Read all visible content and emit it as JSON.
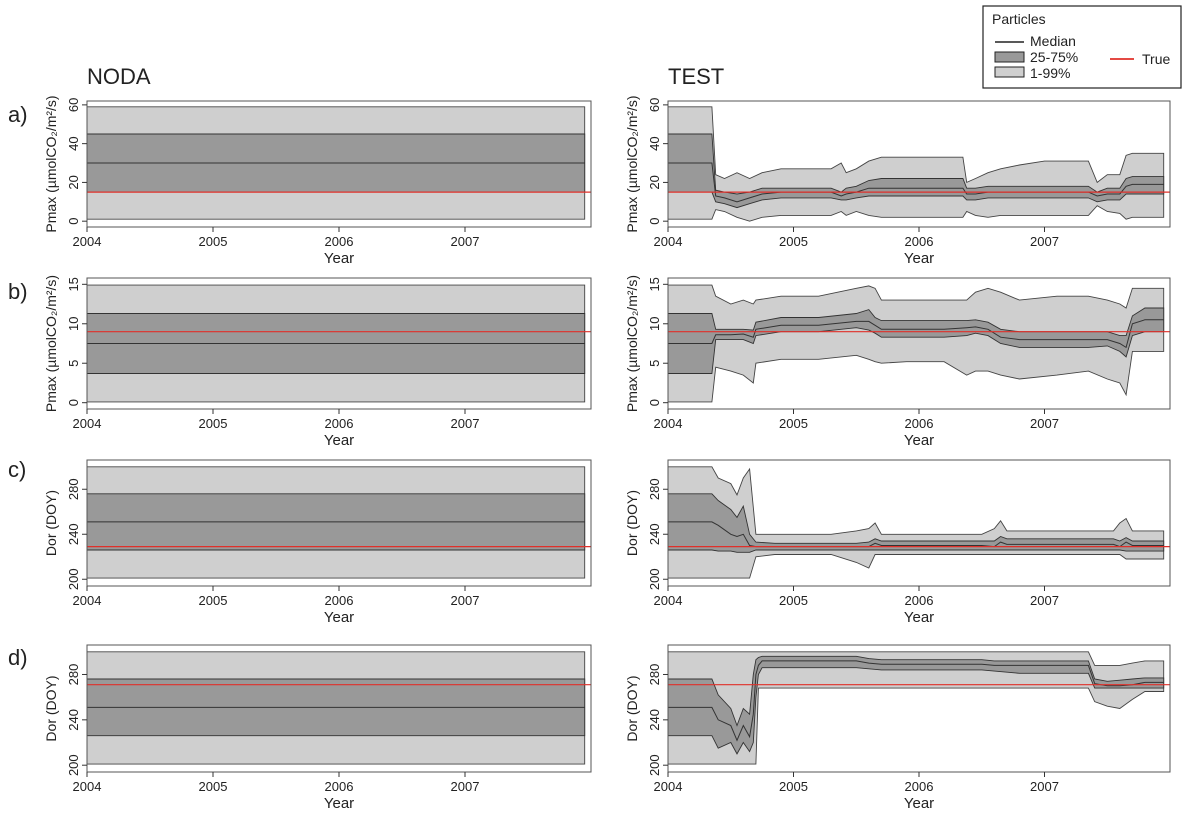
{
  "figure": {
    "column_titles": [
      "NODA",
      "TEST"
    ],
    "panel_letters": [
      "a)",
      "b)",
      "c)",
      "d)"
    ],
    "legend": {
      "title": "Particles",
      "median_label": "Median",
      "iqr_label": "25-75%",
      "range_label": "1-99%",
      "true_label": "True"
    },
    "colors": {
      "outer_band": "#cfcfcf",
      "inner_band": "#999999",
      "median": "#333333",
      "true": "#e0302a"
    }
  },
  "chart_data": [
    {
      "type": "area",
      "panel": "a)",
      "column": "NODA",
      "xlabel": "Year",
      "ylabel": "Pmax (µmolCO₂/m²/s)",
      "xlim": [
        2004.0,
        2008.0
      ],
      "ylim": [
        -3,
        62
      ],
      "xticks": [
        2004,
        2005,
        2006,
        2007
      ],
      "yticks": [
        0,
        20,
        40,
        60
      ],
      "x": [
        2004.0,
        2007.95
      ],
      "p01": [
        1,
        1
      ],
      "p25": [
        15,
        15
      ],
      "median": [
        30,
        30
      ],
      "p75": [
        45,
        45
      ],
      "p99": [
        59,
        59
      ],
      "true_value": 15
    },
    {
      "type": "area",
      "panel": "a)",
      "column": "TEST",
      "xlabel": "Year",
      "ylabel": "Pmax (µmolCO₂/m²/s)",
      "xlim": [
        2004.0,
        2008.0
      ],
      "ylim": [
        -3,
        62
      ],
      "xticks": [
        2004,
        2005,
        2006,
        2007
      ],
      "yticks": [
        0,
        20,
        40,
        60
      ],
      "x": [
        2004.0,
        2004.35,
        2004.38,
        2004.45,
        2004.55,
        2004.65,
        2004.75,
        2004.9,
        2005.1,
        2005.3,
        2005.38,
        2005.42,
        2005.5,
        2005.6,
        2005.7,
        2005.9,
        2006.1,
        2006.35,
        2006.38,
        2006.45,
        2006.55,
        2006.65,
        2006.8,
        2007.0,
        2007.2,
        2007.35,
        2007.42,
        2007.5,
        2007.6,
        2007.65,
        2007.7,
        2007.8,
        2007.95
      ],
      "p01": [
        1,
        1,
        6,
        5,
        2,
        0,
        2,
        3,
        3,
        3,
        5,
        3,
        5,
        3,
        2,
        2,
        2,
        2,
        5,
        3,
        2,
        3,
        3,
        3,
        3,
        3,
        8,
        5,
        4,
        1,
        2,
        2,
        2
      ],
      "p25": [
        15,
        15,
        10,
        9,
        7,
        9,
        11,
        12,
        12,
        12,
        11,
        11,
        12,
        13,
        13,
        13,
        13,
        13,
        11,
        11,
        12,
        12,
        12,
        12,
        12,
        12,
        10,
        11,
        11,
        14,
        14,
        14,
        14
      ],
      "median": [
        30,
        30,
        13,
        12,
        10,
        12,
        14,
        15,
        15,
        15,
        13,
        14,
        15,
        17,
        17,
        17,
        17,
        17,
        14,
        14,
        15,
        15,
        15,
        15,
        15,
        15,
        13,
        14,
        14,
        18,
        19,
        19,
        19
      ],
      "p75": [
        45,
        45,
        16,
        15,
        14,
        15,
        17,
        17,
        17,
        17,
        15,
        17,
        18,
        21,
        22,
        22,
        22,
        22,
        17,
        17,
        18,
        18,
        18,
        18,
        18,
        18,
        15,
        17,
        17,
        22,
        23,
        23,
        23
      ],
      "p99": [
        59,
        59,
        24,
        22,
        25,
        22,
        25,
        27,
        27,
        27,
        30,
        25,
        27,
        31,
        33,
        33,
        33,
        33,
        20,
        22,
        25,
        27,
        29,
        31,
        31,
        31,
        20,
        24,
        24,
        34,
        35,
        35,
        35
      ],
      "true_value": 15
    },
    {
      "type": "area",
      "panel": "b)",
      "column": "NODA",
      "xlabel": "Year",
      "ylabel": "Pmax (µmolCO₂/m²/s)",
      "xlim": [
        2004.0,
        2008.0
      ],
      "ylim": [
        -0.8,
        15.8
      ],
      "xticks": [
        2004,
        2005,
        2006,
        2007
      ],
      "yticks": [
        0,
        5,
        10,
        15
      ],
      "x": [
        2004.0,
        2007.95
      ],
      "p01": [
        0.1,
        0.1
      ],
      "p25": [
        3.7,
        3.7
      ],
      "median": [
        7.5,
        7.5
      ],
      "p75": [
        11.3,
        11.3
      ],
      "p99": [
        14.9,
        14.9
      ],
      "true_value": 9
    },
    {
      "type": "area",
      "panel": "b)",
      "column": "TEST",
      "xlabel": "Year",
      "ylabel": "Pmax (µmolCO₂/m²/s)",
      "xlim": [
        2004.0,
        2008.0
      ],
      "ylim": [
        -0.8,
        15.8
      ],
      "xticks": [
        2004,
        2005,
        2006,
        2007
      ],
      "yticks": [
        0,
        5,
        10,
        15
      ],
      "x": [
        2004.0,
        2004.35,
        2004.38,
        2004.5,
        2004.6,
        2004.68,
        2004.7,
        2004.9,
        2005.2,
        2005.5,
        2005.6,
        2005.65,
        2005.7,
        2005.9,
        2006.2,
        2006.38,
        2006.45,
        2006.55,
        2006.65,
        2006.8,
        2007.1,
        2007.35,
        2007.5,
        2007.6,
        2007.65,
        2007.7,
        2007.8,
        2007.95
      ],
      "p01": [
        0.1,
        0.1,
        4.5,
        4,
        3.5,
        2.5,
        5,
        5.5,
        5.5,
        6,
        5.5,
        5.2,
        5,
        5.2,
        5.2,
        3.5,
        4,
        4,
        3.5,
        3,
        3.5,
        4,
        3,
        2.5,
        1,
        6.5,
        6.5,
        6.5
      ],
      "p25": [
        3.7,
        3.7,
        8,
        8,
        8,
        7.5,
        8.5,
        9,
        9,
        9.5,
        9.2,
        8.8,
        8.3,
        8.3,
        8.3,
        8.5,
        8.8,
        8.5,
        7.5,
        7,
        7,
        7,
        7.2,
        6.5,
        5.8,
        8.5,
        9,
        9
      ],
      "median": [
        7.5,
        7.5,
        8.6,
        8.6,
        8.7,
        8.3,
        9.3,
        9.8,
        9.8,
        10.3,
        10.3,
        9.8,
        9.3,
        9.3,
        9.3,
        9.5,
        9.6,
        9.3,
        8.3,
        8,
        8,
        8,
        8,
        7.5,
        7,
        10,
        10.5,
        10.5
      ],
      "p75": [
        11.3,
        11.3,
        9.3,
        9.3,
        9.3,
        9.2,
        10.2,
        10.8,
        10.8,
        11.3,
        11.8,
        10.8,
        10.4,
        10.4,
        10.4,
        10.4,
        10.5,
        10.2,
        9.3,
        9,
        9,
        9,
        9,
        8.5,
        8.5,
        11,
        12,
        12
      ],
      "p99": [
        14.9,
        14.9,
        13.5,
        12.5,
        13,
        12.5,
        13,
        13.5,
        13.5,
        14.5,
        14.8,
        14.5,
        13,
        13,
        13,
        13,
        14,
        14.5,
        14,
        13,
        13.5,
        13.5,
        13,
        12.5,
        12,
        14.5,
        14.5,
        14.5
      ],
      "true_value": 9
    },
    {
      "type": "area",
      "panel": "c)",
      "column": "NODA",
      "xlabel": "Year",
      "ylabel": "Dor (DOY)",
      "xlim": [
        2004.0,
        2008.0
      ],
      "ylim": [
        194,
        306
      ],
      "xticks": [
        2004,
        2005,
        2006,
        2007
      ],
      "yticks": [
        200,
        240,
        280
      ],
      "x": [
        2004.0,
        2007.95
      ],
      "p01": [
        201,
        201
      ],
      "p25": [
        226,
        226
      ],
      "median": [
        251,
        251
      ],
      "p75": [
        276,
        276
      ],
      "p99": [
        300,
        300
      ],
      "true_value": 229
    },
    {
      "type": "area",
      "panel": "c)",
      "column": "TEST",
      "xlabel": "Year",
      "ylabel": "Dor (DOY)",
      "xlim": [
        2004.0,
        2008.0
      ],
      "ylim": [
        194,
        306
      ],
      "xticks": [
        2004,
        2005,
        2006,
        2007
      ],
      "yticks": [
        200,
        240,
        280
      ],
      "x": [
        2004.0,
        2004.35,
        2004.4,
        2004.5,
        2004.55,
        2004.6,
        2004.65,
        2004.7,
        2004.85,
        2005.0,
        2005.3,
        2005.5,
        2005.6,
        2005.65,
        2005.7,
        2006.0,
        2006.3,
        2006.5,
        2006.6,
        2006.65,
        2006.7,
        2007.0,
        2007.3,
        2007.55,
        2007.6,
        2007.65,
        2007.7,
        2007.95
      ],
      "p01": [
        201,
        201,
        201,
        201,
        201,
        201,
        201,
        220,
        222,
        222,
        222,
        215,
        210,
        222,
        222,
        222,
        222,
        222,
        222,
        222,
        222,
        222,
        222,
        222,
        222,
        218,
        218,
        218
      ],
      "p25": [
        226,
        226,
        225,
        225,
        224,
        224,
        224,
        226,
        226,
        226,
        226,
        226,
        226,
        226,
        226,
        226,
        226,
        226,
        226,
        226,
        226,
        226,
        226,
        226,
        226,
        225,
        225,
        225
      ],
      "median": [
        251,
        251,
        248,
        240,
        238,
        240,
        230,
        229,
        229,
        229,
        229,
        229,
        229,
        232,
        230,
        230,
        230,
        230,
        229,
        233,
        231,
        231,
        231,
        231,
        229,
        233,
        230,
        230
      ],
      "p75": [
        276,
        276,
        270,
        262,
        255,
        265,
        240,
        233,
        232,
        232,
        232,
        232,
        233,
        236,
        234,
        234,
        234,
        234,
        234,
        238,
        236,
        236,
        236,
        236,
        234,
        237,
        234,
        234
      ],
      "p99": [
        300,
        300,
        290,
        285,
        275,
        290,
        298,
        240,
        240,
        240,
        240,
        243,
        245,
        250,
        240,
        240,
        240,
        240,
        245,
        252,
        243,
        243,
        243,
        243,
        250,
        254,
        243,
        243
      ],
      "true_value": 229
    },
    {
      "type": "area",
      "panel": "d)",
      "column": "NODA",
      "xlabel": "Year",
      "ylabel": "Dor (DOY)",
      "xlim": [
        2004.0,
        2008.0
      ],
      "ylim": [
        194,
        306
      ],
      "xticks": [
        2004,
        2005,
        2006,
        2007
      ],
      "yticks": [
        200,
        240,
        280
      ],
      "x": [
        2004.0,
        2007.95
      ],
      "p01": [
        201,
        201
      ],
      "p25": [
        226,
        226
      ],
      "median": [
        251,
        251
      ],
      "p75": [
        276,
        276
      ],
      "p99": [
        300,
        300
      ],
      "true_value": 271
    },
    {
      "type": "area",
      "panel": "d)",
      "column": "TEST",
      "xlabel": "Year",
      "ylabel": "Dor (DOY)",
      "xlim": [
        2004.0,
        2008.0
      ],
      "ylim": [
        194,
        306
      ],
      "xticks": [
        2004,
        2005,
        2006,
        2007
      ],
      "yticks": [
        200,
        240,
        280
      ],
      "x": [
        2004.0,
        2004.35,
        2004.4,
        2004.5,
        2004.55,
        2004.6,
        2004.65,
        2004.68,
        2004.7,
        2004.72,
        2004.75,
        2005.0,
        2005.3,
        2005.5,
        2005.6,
        2005.7,
        2006.0,
        2006.3,
        2006.5,
        2006.6,
        2006.8,
        2007.0,
        2007.35,
        2007.4,
        2007.5,
        2007.6,
        2007.7,
        2007.8,
        2007.95
      ],
      "p01": [
        201,
        201,
        201,
        201,
        201,
        201,
        201,
        201,
        201,
        268,
        268,
        268,
        268,
        268,
        268,
        268,
        268,
        268,
        268,
        268,
        268,
        268,
        268,
        256,
        252,
        250,
        258,
        265,
        265
      ],
      "p25": [
        226,
        226,
        215,
        220,
        210,
        220,
        212,
        220,
        260,
        280,
        286,
        286,
        286,
        286,
        285,
        284,
        284,
        284,
        284,
        283,
        281,
        281,
        281,
        268,
        268,
        268,
        268,
        268,
        268
      ],
      "median": [
        251,
        251,
        240,
        235,
        222,
        235,
        225,
        245,
        280,
        288,
        292,
        292,
        292,
        292,
        290,
        289,
        289,
        289,
        289,
        288,
        288,
        288,
        288,
        272,
        270,
        270,
        271,
        273,
        273
      ],
      "p75": [
        276,
        276,
        262,
        250,
        235,
        250,
        245,
        280,
        293,
        295,
        296,
        296,
        296,
        296,
        294,
        293,
        293,
        293,
        293,
        292,
        292,
        292,
        292,
        276,
        274,
        275,
        276,
        277,
        277
      ],
      "p99": [
        300,
        300,
        300,
        300,
        300,
        300,
        300,
        300,
        300,
        300,
        300,
        300,
        300,
        300,
        300,
        300,
        300,
        300,
        300,
        300,
        300,
        300,
        300,
        288,
        288,
        288,
        290,
        292,
        292
      ],
      "true_value": 271
    }
  ]
}
